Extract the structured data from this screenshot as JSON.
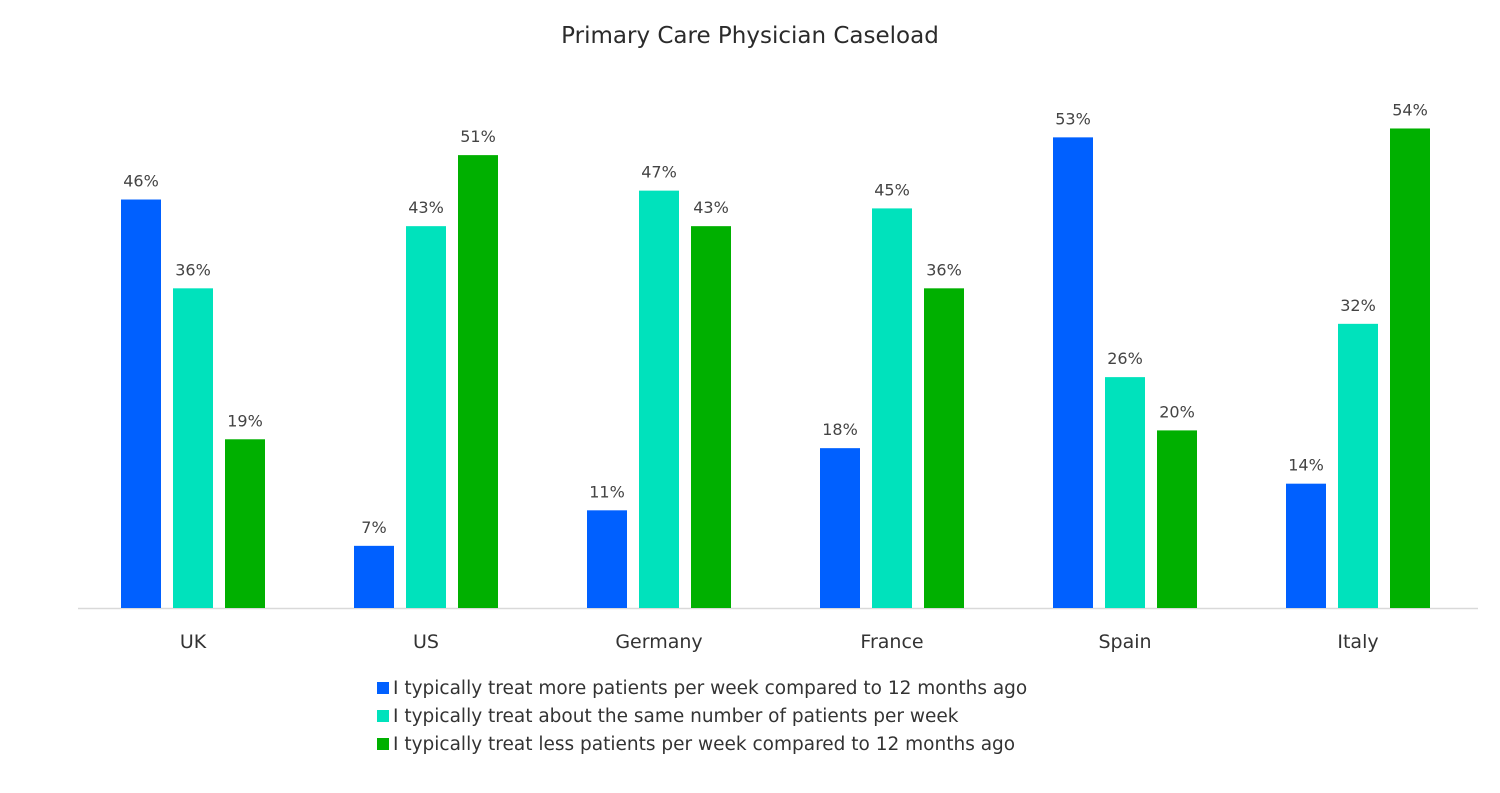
{
  "chart_data": {
    "type": "bar",
    "title": "Primary Care Physician Caseload",
    "categories": [
      "UK",
      "US",
      "Germany",
      "France",
      "Spain",
      "Italy"
    ],
    "series": [
      {
        "name": "I typically treat more patients per week compared to 12 months ago",
        "color": "#0060FF",
        "values": [
          46,
          7,
          11,
          18,
          53,
          14
        ]
      },
      {
        "name": "I typically treat about the same number of patients per week",
        "color": "#00E2BC",
        "values": [
          36,
          43,
          47,
          45,
          26,
          32
        ]
      },
      {
        "name": "I typically treat less patients per week compared to 12 months ago",
        "color": "#00B000",
        "values": [
          19,
          51,
          43,
          36,
          20,
          54
        ]
      }
    ],
    "value_suffix": "%",
    "ylim": [
      0,
      60
    ],
    "grid": false,
    "legend_position": "bottom"
  }
}
